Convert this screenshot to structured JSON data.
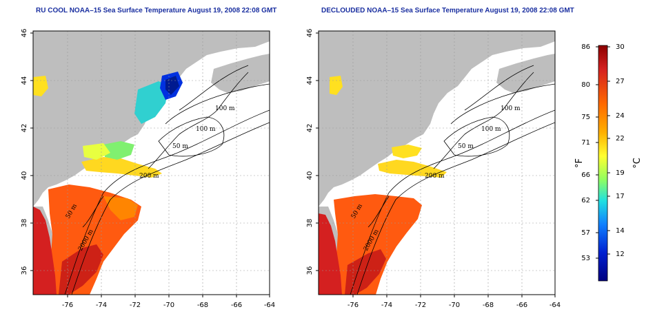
{
  "titles": {
    "left": "RU COOL NOAA–15 Sea Surface Temperature August 19, 2008 22:08 GMT",
    "right": "DECLOUDED NOAA–15 Sea Surface Temperature August 19, 2008 22:08 GMT"
  },
  "axes": {
    "lat_ticks": [
      "46",
      "44",
      "42",
      "40",
      "38",
      "36"
    ],
    "lon_ticks": [
      "-76",
      "-74",
      "-72",
      "-70",
      "-68",
      "-66",
      "-64"
    ]
  },
  "contour_labels": {
    "left": [
      "100 m",
      "100 m",
      "50 m",
      "200 m",
      "50 m",
      "2000 m"
    ],
    "right": [
      "100 m",
      "100 m",
      "50 m",
      "200 m",
      "50 m",
      "2000 m"
    ]
  },
  "colorbar": {
    "f_ticks": [
      "86",
      "80",
      "75",
      "71",
      "66",
      "62",
      "57",
      "53"
    ],
    "c_ticks": [
      "30",
      "27",
      "24",
      "22",
      "19",
      "17",
      "14",
      "12"
    ],
    "f_label": "°F",
    "c_label": "°C",
    "colors": [
      "#8b0000",
      "#d42020",
      "#ff6a00",
      "#ffb000",
      "#ffff30",
      "#90ff60",
      "#20e0e0",
      "#1080ff",
      "#0020d0",
      "#000080"
    ]
  },
  "colors": {
    "land": "#bebebe",
    "title": "#1a2fa0"
  }
}
